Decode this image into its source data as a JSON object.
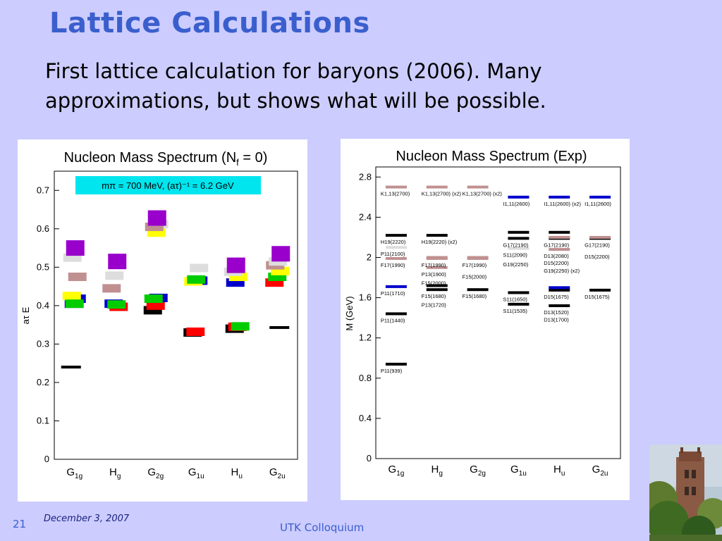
{
  "slide": {
    "title": "Lattice Calculations",
    "subtitle": "First lattice calculation for baryons (2006). Many approximations, but shows what will be possible.",
    "page_number": "21",
    "date": "December 3, 2007",
    "footer_center": "UTK Colloquium"
  },
  "colors": {
    "background": "#ccccff",
    "title": "#3a5fcd",
    "black": "#000000",
    "red": "#ff0000",
    "blue": "#0000cc",
    "green": "#00cc00",
    "yellow": "#ffff00",
    "purple": "#9900cc",
    "rose": "#c09090",
    "lightgray": "#dddddd",
    "cyan_box": "#00e5ee"
  },
  "chart_data": [
    {
      "type": "scatter",
      "title": "Nucleon Mass Spectrum (N",
      "title_sub": "f",
      "title_end": " = 0)",
      "annotation": "mπ = 700 MeV,  (aτ)⁻¹ = 6.2 GeV",
      "ylabel": "aτ E",
      "ylim": [
        0,
        0.75
      ],
      "yticks": [
        "0",
        "0.1",
        "0.2",
        "0.3",
        "0.4",
        "0.5",
        "0.6",
        "0.7"
      ],
      "ytick_values": [
        0,
        0.1,
        0.2,
        0.3,
        0.4,
        0.5,
        0.6,
        0.7
      ],
      "categories": [
        "G1g",
        "Hg",
        "G2g",
        "G1u",
        "Hu",
        "G2u"
      ],
      "category_labels": [
        {
          "main": "G",
          "sub": "1g"
        },
        {
          "main": "H",
          "sub": "g"
        },
        {
          "main": "G",
          "sub": "2g"
        },
        {
          "main": "G",
          "sub": "1u"
        },
        {
          "main": "H",
          "sub": "u"
        },
        {
          "main": "G",
          "sub": "2u"
        }
      ],
      "levels": [
        {
          "cat": 0,
          "value": 0.24,
          "color": "black",
          "kind": "line"
        },
        {
          "cat": 0,
          "value": 0.405,
          "color": "blue",
          "kind": "box"
        },
        {
          "cat": 0,
          "value": 0.418,
          "color": "blue",
          "kind": "box"
        },
        {
          "cat": 0,
          "value": 0.425,
          "color": "yellow",
          "kind": "box"
        },
        {
          "cat": 0,
          "value": 0.405,
          "color": "green",
          "kind": "box"
        },
        {
          "cat": 0,
          "value": 0.475,
          "color": "rose",
          "kind": "box"
        },
        {
          "cat": 0,
          "value": 0.525,
          "color": "lightgray",
          "kind": "box"
        },
        {
          "cat": 0,
          "value": 0.55,
          "color": "purple",
          "kind": "box"
        },
        {
          "cat": 1,
          "value": 0.397,
          "color": "red",
          "kind": "box"
        },
        {
          "cat": 1,
          "value": 0.405,
          "color": "blue",
          "kind": "box"
        },
        {
          "cat": 1,
          "value": 0.403,
          "color": "green",
          "kind": "box"
        },
        {
          "cat": 1,
          "value": 0.445,
          "color": "rose",
          "kind": "box"
        },
        {
          "cat": 1,
          "value": 0.478,
          "color": "lightgray",
          "kind": "box"
        },
        {
          "cat": 1,
          "value": 0.515,
          "color": "purple",
          "kind": "box"
        },
        {
          "cat": 2,
          "value": 0.388,
          "color": "black",
          "kind": "box"
        },
        {
          "cat": 2,
          "value": 0.4,
          "color": "red",
          "kind": "box"
        },
        {
          "cat": 2,
          "value": 0.42,
          "color": "blue",
          "kind": "box"
        },
        {
          "cat": 2,
          "value": 0.418,
          "color": "green",
          "kind": "box"
        },
        {
          "cat": 2,
          "value": 0.59,
          "color": "yellow",
          "kind": "box"
        },
        {
          "cat": 2,
          "value": 0.612,
          "color": "lightgray",
          "kind": "box"
        },
        {
          "cat": 2,
          "value": 0.605,
          "color": "rose",
          "kind": "box"
        },
        {
          "cat": 2,
          "value": 0.628,
          "color": "purple",
          "kind": "box"
        },
        {
          "cat": 3,
          "value": 0.33,
          "color": "black",
          "kind": "box"
        },
        {
          "cat": 3,
          "value": 0.332,
          "color": "red",
          "kind": "box"
        },
        {
          "cat": 3,
          "value": 0.465,
          "color": "blue",
          "kind": "box"
        },
        {
          "cat": 3,
          "value": 0.463,
          "color": "yellow",
          "kind": "box"
        },
        {
          "cat": 3,
          "value": 0.468,
          "color": "green",
          "kind": "box"
        },
        {
          "cat": 3,
          "value": 0.498,
          "color": "lightgray",
          "kind": "box"
        },
        {
          "cat": 4,
          "value": 0.34,
          "color": "black",
          "kind": "box"
        },
        {
          "cat": 4,
          "value": 0.345,
          "color": "red",
          "kind": "box"
        },
        {
          "cat": 4,
          "value": 0.346,
          "color": "green",
          "kind": "box"
        },
        {
          "cat": 4,
          "value": 0.46,
          "color": "blue",
          "kind": "box"
        },
        {
          "cat": 4,
          "value": 0.475,
          "color": "yellow",
          "kind": "box"
        },
        {
          "cat": 4,
          "value": 0.488,
          "color": "lightgray",
          "kind": "box"
        },
        {
          "cat": 4,
          "value": 0.505,
          "color": "purple",
          "kind": "box"
        },
        {
          "cat": 5,
          "value": 0.343,
          "color": "black",
          "kind": "line"
        },
        {
          "cat": 5,
          "value": 0.46,
          "color": "red",
          "kind": "box"
        },
        {
          "cat": 5,
          "value": 0.475,
          "color": "green",
          "kind": "box"
        },
        {
          "cat": 5,
          "value": 0.49,
          "color": "yellow",
          "kind": "box"
        },
        {
          "cat": 5,
          "value": 0.505,
          "color": "rose",
          "kind": "box"
        },
        {
          "cat": 5,
          "value": 0.515,
          "color": "lightgray",
          "kind": "box"
        },
        {
          "cat": 5,
          "value": 0.535,
          "color": "purple",
          "kind": "box"
        }
      ]
    },
    {
      "type": "scatter",
      "title": "Nucleon Mass Spectrum (Exp)",
      "ylabel": "M (GeV)",
      "ylim": [
        0,
        2.9
      ],
      "yticks": [
        "0",
        "0.4",
        "0.8",
        "1.2",
        "1.6",
        "2",
        "2.4",
        "2.8"
      ],
      "ytick_values": [
        0,
        0.4,
        0.8,
        1.2,
        1.6,
        2.0,
        2.4,
        2.8
      ],
      "categories": [
        "G1g",
        "Hg",
        "G2g",
        "G1u",
        "Hu",
        "G2u"
      ],
      "category_labels": [
        {
          "main": "G",
          "sub": "1g"
        },
        {
          "main": "H",
          "sub": "g"
        },
        {
          "main": "G",
          "sub": "2g"
        },
        {
          "main": "G",
          "sub": "1u"
        },
        {
          "main": "H",
          "sub": "u"
        },
        {
          "main": "G",
          "sub": "2u"
        }
      ],
      "levels": [
        {
          "cat": 0,
          "value": 0.939,
          "color": "black",
          "label": "P11(939)"
        },
        {
          "cat": 0,
          "value": 1.44,
          "color": "black",
          "label": "P11(1440)"
        },
        {
          "cat": 0,
          "value": 1.71,
          "color": "blue",
          "label": "P11(1710)"
        },
        {
          "cat": 0,
          "value": 1.99,
          "color": "rose",
          "label": "F17(1990)"
        },
        {
          "cat": 0,
          "value": 2.1,
          "color": "lightgray",
          "label": "P11(2100)"
        },
        {
          "cat": 0,
          "value": 2.22,
          "color": "black",
          "label": "H19(2220)"
        },
        {
          "cat": 0,
          "value": 2.7,
          "color": "rose",
          "label": "K1,13(2700)"
        },
        {
          "cat": 1,
          "value": 1.68,
          "color": "black",
          "label": "F15(1680)"
        },
        {
          "cat": 1,
          "value": 1.72,
          "color": "black",
          "label": "P13(1720)"
        },
        {
          "cat": 1,
          "value": 1.9,
          "color": "rose",
          "label": "P13(1900)"
        },
        {
          "cat": 1,
          "value": 1.99,
          "color": "rose",
          "label": "F17(1990)"
        },
        {
          "cat": 1,
          "value": 2.0,
          "color": "rose",
          "label": "F15(2000)"
        },
        {
          "cat": 1,
          "value": 2.22,
          "color": "black",
          "label": "H19(2220) (x2)"
        },
        {
          "cat": 1,
          "value": 2.7,
          "color": "rose",
          "label": "K1,13(2700) (x2)"
        },
        {
          "cat": 2,
          "value": 1.68,
          "color": "black",
          "label": "F15(1680)"
        },
        {
          "cat": 2,
          "value": 1.99,
          "color": "rose",
          "label": "F17(1990)"
        },
        {
          "cat": 2,
          "value": 2.0,
          "color": "rose",
          "label": "F15(2000)"
        },
        {
          "cat": 2,
          "value": 2.7,
          "color": "rose",
          "label": "K1,13(2700) (x2)"
        },
        {
          "cat": 3,
          "value": 1.535,
          "color": "black",
          "label": "S11(1535)"
        },
        {
          "cat": 3,
          "value": 1.65,
          "color": "black",
          "label": "S11(1650)"
        },
        {
          "cat": 3,
          "value": 2.09,
          "color": "lightgray",
          "label": "S11(2090)"
        },
        {
          "cat": 3,
          "value": 2.19,
          "color": "black",
          "label": "G17(2190)"
        },
        {
          "cat": 3,
          "value": 2.25,
          "color": "black",
          "label": "G19(2250)"
        },
        {
          "cat": 3,
          "value": 2.6,
          "color": "blue",
          "label": "I1,11(2600)"
        },
        {
          "cat": 4,
          "value": 1.52,
          "color": "black",
          "label": "D13(1520)"
        },
        {
          "cat": 4,
          "value": 1.675,
          "color": "black",
          "label": "D15(1675)"
        },
        {
          "cat": 4,
          "value": 1.7,
          "color": "blue",
          "label": "D13(1700)"
        },
        {
          "cat": 4,
          "value": 2.08,
          "color": "rose",
          "label": "D13(2080)"
        },
        {
          "cat": 4,
          "value": 2.19,
          "color": "black",
          "label": "G17(2190)"
        },
        {
          "cat": 4,
          "value": 2.2,
          "color": "rose",
          "label": "D15(2200)"
        },
        {
          "cat": 4,
          "value": 2.25,
          "color": "black",
          "label": "G19(2250) (x2)"
        },
        {
          "cat": 4,
          "value": 2.6,
          "color": "blue",
          "label": "I1,11(2600) (x2)"
        },
        {
          "cat": 5,
          "value": 1.675,
          "color": "black",
          "label": "D15(1675)"
        },
        {
          "cat": 5,
          "value": 2.19,
          "color": "black",
          "label": "G17(2190)"
        },
        {
          "cat": 5,
          "value": 2.2,
          "color": "rose",
          "label": "D15(2200)"
        },
        {
          "cat": 5,
          "value": 2.6,
          "color": "blue",
          "label": "I1,11(2600)"
        }
      ]
    }
  ]
}
